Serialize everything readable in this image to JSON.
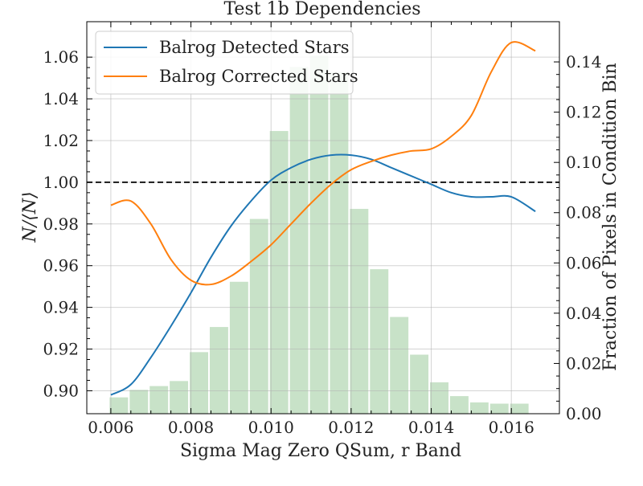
{
  "chart_data": {
    "type": "line",
    "title": "Test 1b Dependencies",
    "xlabel": "Sigma Mag Zero QSum, r Band",
    "ylabel": "N/⟨N⟩",
    "y2label": "Fraction of Pixels in Condition Bin",
    "xlim": [
      0.0054,
      0.0172
    ],
    "ylim": [
      0.889,
      1.077
    ],
    "y2lim": [
      0.0,
      0.156
    ],
    "x_ticks": [
      0.006,
      0.008,
      0.01,
      0.012,
      0.014,
      0.016
    ],
    "x_tick_labels": [
      "0.006",
      "0.008",
      "0.010",
      "0.012",
      "0.014",
      "0.016"
    ],
    "y_ticks": [
      0.9,
      0.92,
      0.94,
      0.96,
      0.98,
      1.0,
      1.02,
      1.04,
      1.06
    ],
    "y_tick_labels": [
      "0.90",
      "0.92",
      "0.94",
      "0.96",
      "0.98",
      "1.00",
      "1.02",
      "1.04",
      "1.06"
    ],
    "y2_ticks": [
      0.0,
      0.02,
      0.04,
      0.06,
      0.08,
      0.1,
      0.12,
      0.14
    ],
    "y2_tick_labels": [
      "0.00",
      "0.02",
      "0.04",
      "0.06",
      "0.08",
      "0.10",
      "0.12",
      "0.14"
    ],
    "grid": true,
    "legend_position": "top-left",
    "reference_line": 1.0,
    "colors": {
      "detected": "#1f77b4",
      "corrected": "#ff7f0e",
      "histogram": "#c8e2c8",
      "reference": "#000000"
    },
    "series": [
      {
        "name": "Balrog Detected Stars",
        "x": [
          0.006,
          0.0065,
          0.007,
          0.0075,
          0.008,
          0.0085,
          0.009,
          0.0095,
          0.01,
          0.0105,
          0.011,
          0.0115,
          0.012,
          0.0125,
          0.013,
          0.0135,
          0.014,
          0.0145,
          0.015,
          0.0155,
          0.016,
          0.0166
        ],
        "y": [
          0.898,
          0.903,
          0.916,
          0.931,
          0.947,
          0.964,
          0.979,
          0.991,
          1.001,
          1.007,
          1.011,
          1.013,
          1.013,
          1.011,
          1.007,
          1.003,
          0.999,
          0.995,
          0.993,
          0.993,
          0.993,
          0.986
        ]
      },
      {
        "name": "Balrog Corrected Stars",
        "x": [
          0.006,
          0.0065,
          0.007,
          0.0075,
          0.008,
          0.0085,
          0.009,
          0.0095,
          0.01,
          0.0105,
          0.011,
          0.0115,
          0.012,
          0.0125,
          0.013,
          0.0135,
          0.014,
          0.0145,
          0.015,
          0.0155,
          0.016,
          0.0166
        ],
        "y": [
          0.989,
          0.991,
          0.98,
          0.963,
          0.953,
          0.951,
          0.955,
          0.962,
          0.97,
          0.98,
          0.99,
          0.999,
          1.006,
          1.01,
          1.013,
          1.015,
          1.016,
          1.022,
          1.032,
          1.053,
          1.067,
          1.063
        ]
      }
    ],
    "histogram": {
      "name": "Fraction of Pixels in Condition Bin",
      "bin_width": 0.0005,
      "bin_centers": [
        0.0062,
        0.0067,
        0.0072,
        0.0077,
        0.0082,
        0.0087,
        0.0092,
        0.0097,
        0.0102,
        0.0107,
        0.0112,
        0.0117,
        0.0122,
        0.0127,
        0.0132,
        0.0137,
        0.0142,
        0.0147,
        0.0152,
        0.0157,
        0.0162
      ],
      "values": [
        0.0065,
        0.0095,
        0.011,
        0.013,
        0.0245,
        0.0345,
        0.0525,
        0.0775,
        0.1125,
        0.138,
        0.1425,
        0.136,
        0.0815,
        0.0575,
        0.0385,
        0.0235,
        0.0125,
        0.007,
        0.0045,
        0.004,
        0.004
      ]
    }
  }
}
